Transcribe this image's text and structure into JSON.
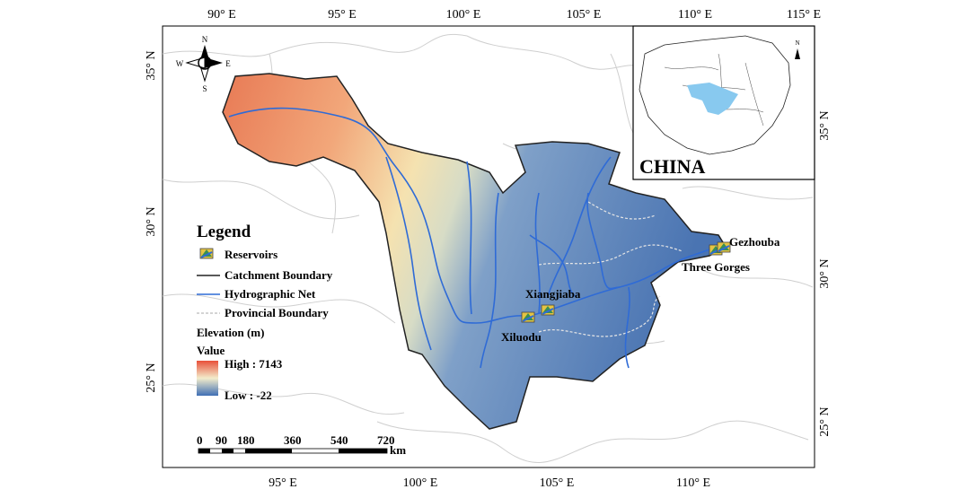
{
  "map": {
    "top_ticks": [
      "90° E",
      "95° E",
      "100° E",
      "105° E",
      "110° E",
      "115° E"
    ],
    "bottom_ticks": [
      "95° E",
      "100° E",
      "105° E",
      "110° E"
    ],
    "left_ticks": [
      "35° N",
      "30° N",
      "25° N"
    ],
    "right_ticks": [
      "35° N",
      "30° N",
      "25° N"
    ]
  },
  "compass": {
    "n": "N",
    "s": "S",
    "e": "E",
    "w": "W"
  },
  "inset": {
    "label": "CHINA",
    "north": "N"
  },
  "legend": {
    "title": "Legend",
    "reservoirs": "Reservoirs",
    "catchment_boundary": "Catchment Boundary",
    "hydrographic_net": "Hydrographic Net",
    "provincial_boundary": "Provincial Boundary",
    "elevation": "Elevation (m)",
    "value": "Value",
    "high": "High : 7143",
    "low": "Low : -22"
  },
  "reservoirs": [
    {
      "name": "Gezhouba"
    },
    {
      "name": "Three Gorges"
    },
    {
      "name": "Xiangjiaba"
    },
    {
      "name": "Xiluodu"
    }
  ],
  "scalebar": {
    "ticks": [
      "0",
      "90",
      "180",
      "360",
      "540",
      "720"
    ],
    "unit": "km"
  },
  "colors": {
    "elev_high": "#e8603c",
    "elev_mid": "#f2e9c0",
    "elev_low": "#3f6fb5",
    "river": "#2f6bd6",
    "catchment": "#222222",
    "province": "#d3d3d3",
    "inset_basin": "#88c9ef"
  }
}
